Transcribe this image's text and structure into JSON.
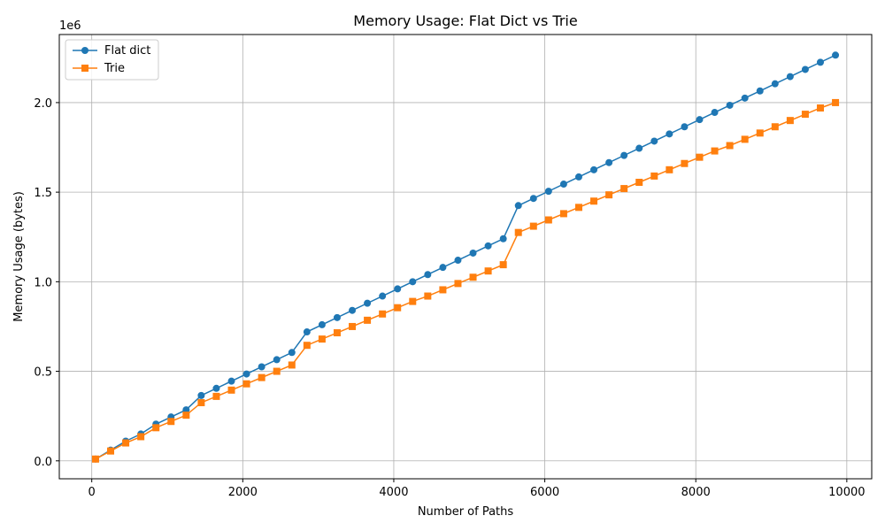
{
  "chart_data": {
    "type": "line",
    "title": "Memory Usage: Flat Dict vs Trie",
    "xlabel": "Number of Paths",
    "ylabel": "Memory Usage (bytes)",
    "y_offset_label": "1e6",
    "xlim": [
      -430,
      10330
    ],
    "ylim": [
      -100000,
      2380000
    ],
    "xticks": [
      0,
      2000,
      4000,
      6000,
      8000,
      10000
    ],
    "xtick_labels": [
      "0",
      "2000",
      "4000",
      "6000",
      "8000",
      "10000"
    ],
    "yticks": [
      0,
      500000,
      1000000,
      1500000,
      2000000
    ],
    "ytick_labels": [
      "0.0",
      "0.5",
      "1.0",
      "1.5",
      "2.0"
    ],
    "grid": true,
    "legend_position": "top-left",
    "x": [
      50,
      250,
      450,
      650,
      850,
      1050,
      1250,
      1450,
      1650,
      1850,
      2050,
      2250,
      2450,
      2650,
      2850,
      3050,
      3250,
      3450,
      3650,
      3850,
      4050,
      4250,
      4450,
      4650,
      4850,
      5050,
      5250,
      5450,
      5650,
      5850,
      6050,
      6250,
      6450,
      6650,
      6850,
      7050,
      7250,
      7450,
      7650,
      7850,
      8050,
      8250,
      8450,
      8650,
      8850,
      9050,
      9250,
      9450,
      9650,
      9850
    ],
    "series": [
      {
        "name": "Flat dict",
        "color": "#1f77b4",
        "marker": "circle",
        "values": [
          10000,
          60000,
          110000,
          150000,
          205000,
          245000,
          285000,
          365000,
          405000,
          445000,
          485000,
          525000,
          565000,
          605000,
          720000,
          760000,
          800000,
          840000,
          880000,
          920000,
          960000,
          1000000,
          1040000,
          1080000,
          1120000,
          1160000,
          1200000,
          1240000,
          1425000,
          1465000,
          1505000,
          1545000,
          1585000,
          1625000,
          1665000,
          1705000,
          1745000,
          1785000,
          1825000,
          1865000,
          1905000,
          1945000,
          1985000,
          2025000,
          2065000,
          2105000,
          2145000,
          2185000,
          2225000,
          2265000
        ]
      },
      {
        "name": "Trie",
        "color": "#ff7f0e",
        "marker": "square",
        "values": [
          10000,
          55000,
          100000,
          135000,
          185000,
          220000,
          255000,
          325000,
          360000,
          395000,
          430000,
          465000,
          500000,
          535000,
          645000,
          680000,
          715000,
          750000,
          785000,
          820000,
          855000,
          890000,
          920000,
          955000,
          990000,
          1025000,
          1060000,
          1095000,
          1275000,
          1310000,
          1345000,
          1380000,
          1415000,
          1450000,
          1485000,
          1520000,
          1555000,
          1590000,
          1625000,
          1660000,
          1695000,
          1730000,
          1760000,
          1795000,
          1830000,
          1865000,
          1900000,
          1935000,
          1970000,
          2000000
        ]
      }
    ]
  }
}
